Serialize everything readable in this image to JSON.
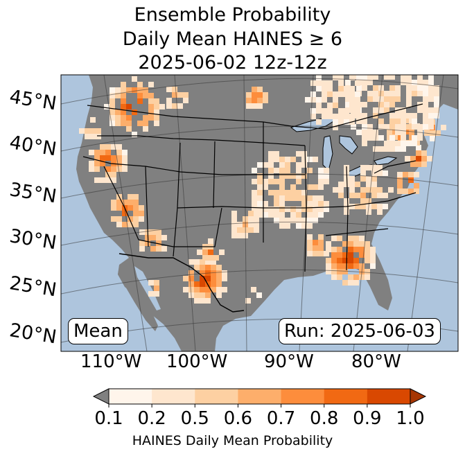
{
  "title": {
    "line1": "Ensemble Probability",
    "line2": "Daily Mean HAINES ≥ 6",
    "line3": "2025-06-02 12z-12z"
  },
  "map": {
    "stat_label": "Mean",
    "run_label": "Run: 2025-06-03",
    "ocean_color": "#aec5dd",
    "land_color": "#808080",
    "lat_labels": [
      "45°N",
      "40°N",
      "35°N",
      "30°N",
      "25°N",
      "20°N"
    ],
    "lon_labels": [
      "110°W",
      "100°W",
      "90°W",
      "80°W"
    ]
  },
  "colorbar": {
    "ticks": [
      "0.1",
      "0.2",
      "0.5",
      "0.6",
      "0.7",
      "0.8",
      "0.9",
      "1.0"
    ],
    "colors": [
      "#fff5eb",
      "#fee6ce",
      "#fdd0a2",
      "#fdae6b",
      "#fd8d3c",
      "#f16913",
      "#d94801",
      "#a63603"
    ],
    "under_color": "#808080",
    "label": "HAINES Daily Mean Probability"
  }
}
